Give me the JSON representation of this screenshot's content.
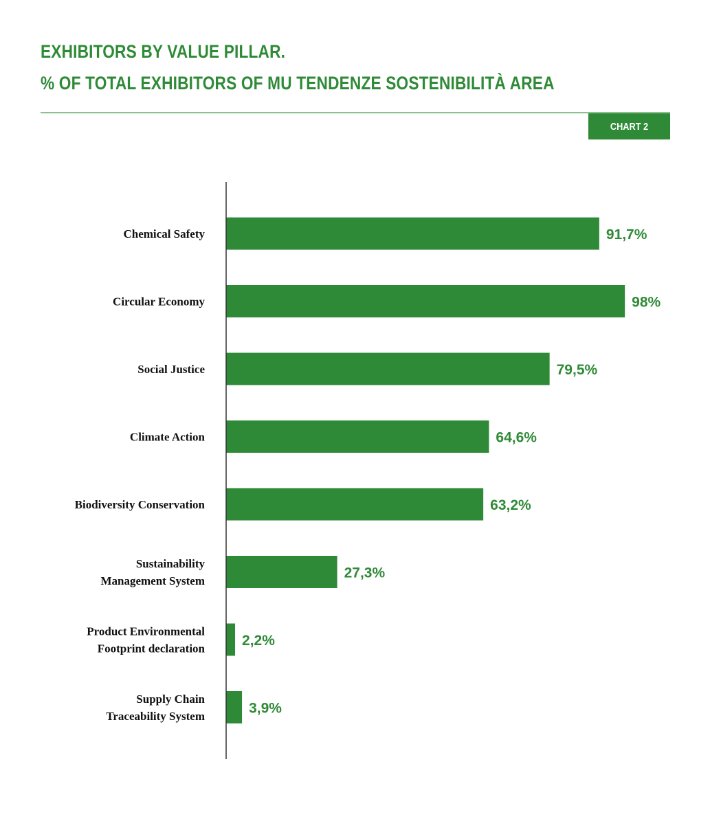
{
  "header": {
    "title_line1": "EXHIBITORS BY VALUE PILLAR.",
    "title_line2": "% OF TOTAL EXHIBITORS OF MU TENDENZE SOSTENIBILITÀ AREA",
    "chart_tag": "CHART 2"
  },
  "colors": {
    "accent": "#2f8a37",
    "rule": "#8cc08f",
    "axis": "#333333",
    "label": "#111111"
  },
  "chart_data": {
    "type": "bar",
    "orientation": "horizontal",
    "title": "EXHIBITORS BY VALUE PILLAR. % OF TOTAL EXHIBITORS OF MU TENDENZE SOSTENIBILITÀ AREA",
    "categories": [
      [
        "Chemical Safety"
      ],
      [
        "Circular Economy"
      ],
      [
        "Social Justice"
      ],
      [
        "Climate Action"
      ],
      [
        "Biodiversity Conservation"
      ],
      [
        "Sustainability",
        "Management System"
      ],
      [
        "Product Environmental",
        "Footprint declaration"
      ],
      [
        "Supply Chain",
        "Traceability System"
      ]
    ],
    "values": [
      91.7,
      98,
      79.5,
      64.6,
      63.2,
      27.3,
      2.2,
      3.9
    ],
    "value_labels": [
      "91,7%",
      "98%",
      "79,5%",
      "64,6%",
      "63,2%",
      "27,3%",
      "2,2%",
      "3,9%"
    ],
    "xlim": [
      0,
      100
    ],
    "grid": false,
    "legend": "none"
  }
}
